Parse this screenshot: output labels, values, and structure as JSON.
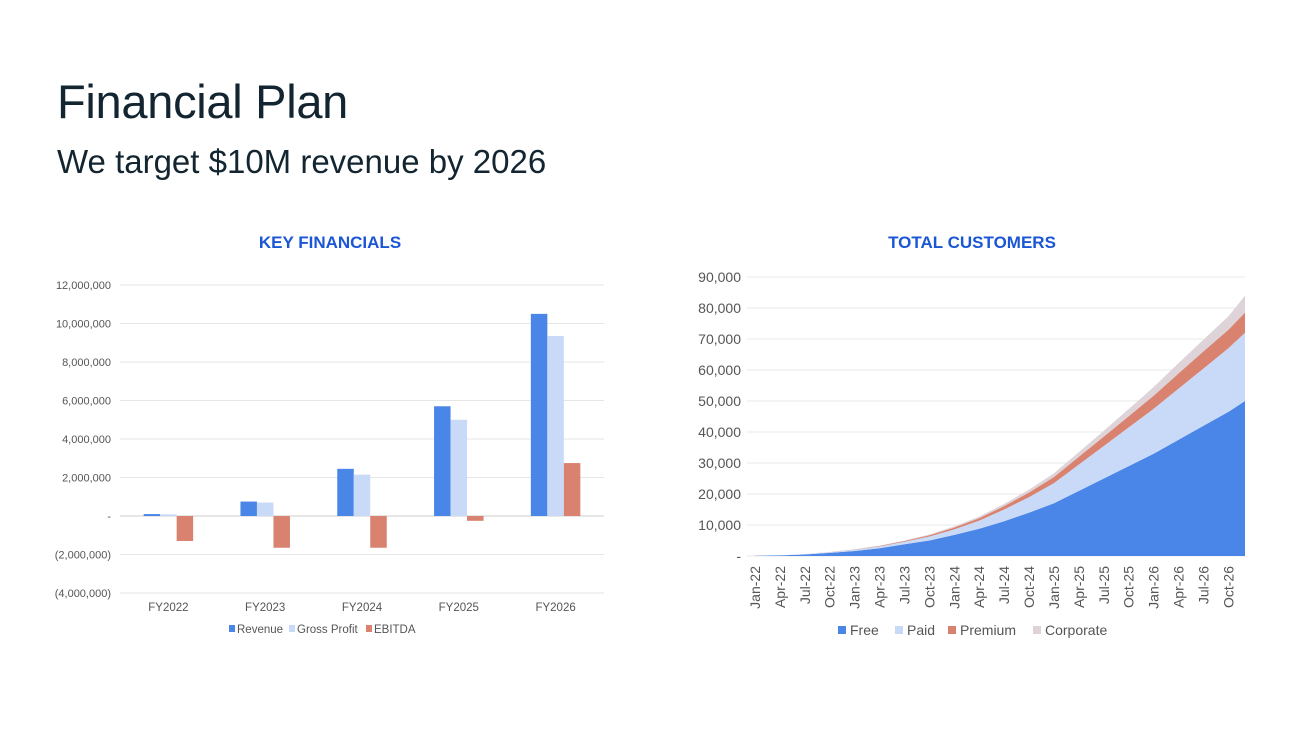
{
  "slide": {
    "title": "Financial Plan",
    "subtitle": "We target $10M revenue by 2026"
  },
  "chart_data": [
    {
      "type": "bar",
      "title": "KEY FINANCIALS",
      "categories": [
        "FY2022",
        "FY2023",
        "FY2024",
        "FY2025",
        "FY2026"
      ],
      "series": [
        {
          "name": "Revenue",
          "color": "#4a86e8",
          "values": [
            100000,
            750000,
            2450000,
            5700000,
            10500000
          ]
        },
        {
          "name": "Gross Profit",
          "color": "#c9daf8",
          "values": [
            90000,
            700000,
            2150000,
            5000000,
            9350000
          ]
        },
        {
          "name": "EBITDA",
          "color": "#d9826f",
          "values": [
            -1300000,
            -1650000,
            -1650000,
            -250000,
            2750000
          ]
        }
      ],
      "ylim": [
        -4000000,
        12000000
      ],
      "yticks": [
        12000000,
        10000000,
        8000000,
        6000000,
        4000000,
        2000000,
        0,
        -2000000,
        -4000000
      ],
      "ytick_labels": [
        "12,000,000",
        "10,000,000",
        "8,000,000",
        "6,000,000",
        "4,000,000",
        "2,000,000",
        "-",
        "(2,000,000)",
        "(4,000,000)"
      ],
      "grid": true,
      "legend": "bottom"
    },
    {
      "type": "area",
      "stacked": true,
      "title": "TOTAL CUSTOMERS",
      "x": [
        "Jan-22",
        "Apr-22",
        "Jul-22",
        "Oct-22",
        "Jan-23",
        "Apr-23",
        "Jul-23",
        "Oct-23",
        "Jan-24",
        "Apr-24",
        "Jul-24",
        "Oct-24",
        "Jan-25",
        "Apr-25",
        "Jul-25",
        "Oct-25",
        "Jan-26",
        "Apr-26",
        "Jul-26",
        "Oct-26",
        "Dec-26"
      ],
      "series": [
        {
          "name": "Free",
          "color": "#4a86e8",
          "values": [
            100,
            200,
            500,
            1000,
            1600,
            2500,
            3800,
            5000,
            6800,
            8800,
            11200,
            14000,
            17000,
            21000,
            25000,
            29000,
            33000,
            37500,
            42000,
            46500,
            50000
          ]
        },
        {
          "name": "Paid",
          "color": "#c9daf8",
          "values": [
            0,
            50,
            100,
            200,
            400,
            600,
            800,
            1300,
            1800,
            2600,
            3800,
            5000,
            6500,
            8500,
            10500,
            12500,
            14500,
            16500,
            18500,
            20500,
            22000
          ]
        },
        {
          "name": "Premium",
          "color": "#d9826f",
          "values": [
            0,
            0,
            20,
            50,
            100,
            150,
            250,
            400,
            600,
            800,
            1100,
            1500,
            2000,
            2500,
            3000,
            3600,
            4200,
            4900,
            5500,
            6000,
            6500
          ]
        },
        {
          "name": "Corporate",
          "color": "#ddd3d8",
          "values": [
            0,
            0,
            10,
            30,
            60,
            100,
            150,
            250,
            350,
            500,
            700,
            900,
            1200,
            1500,
            1900,
            2300,
            2800,
            3300,
            3800,
            4300,
            5500
          ]
        }
      ],
      "ylim": [
        0,
        90000
      ],
      "yticks": [
        90000,
        80000,
        70000,
        60000,
        50000,
        40000,
        30000,
        20000,
        10000,
        0
      ],
      "ytick_labels": [
        "90,000",
        "80,000",
        "70,000",
        "60,000",
        "50,000",
        "40,000",
        "30,000",
        "20,000",
        "10,000",
        "-"
      ],
      "xtick_labels": [
        "Jan-22",
        "Apr-22",
        "Jul-22",
        "Oct-22",
        "Jan-23",
        "Apr-23",
        "Jul-23",
        "Oct-23",
        "Jan-24",
        "Apr-24",
        "Jul-24",
        "Oct-24",
        "Jan-25",
        "Apr-25",
        "Jul-25",
        "Oct-25",
        "Jan-26",
        "Apr-26",
        "Jul-26",
        "Oct-26"
      ],
      "grid": true,
      "legend": "bottom"
    }
  ]
}
